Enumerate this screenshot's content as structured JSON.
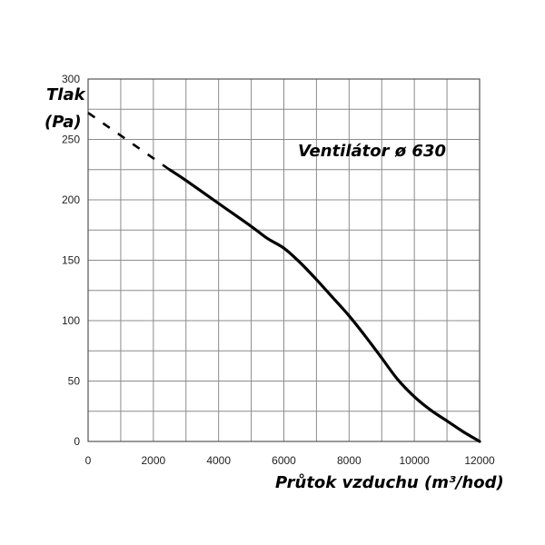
{
  "chart_data": {
    "type": "line",
    "title": "",
    "xlabel": "Průtok vzduchu (m³/hod)",
    "ylabel_line1": "Tlak",
    "ylabel_line2": "(Pa)",
    "xlim": [
      0,
      12000
    ],
    "ylim": [
      0,
      300
    ],
    "x_major_ticks": [
      0,
      2000,
      4000,
      6000,
      8000,
      10000,
      12000
    ],
    "x_tick_labels": [
      "0",
      "2000",
      "4000",
      "6000",
      "8000",
      "10000",
      "12000"
    ],
    "y_major_ticks": [
      0,
      50,
      100,
      150,
      200,
      250,
      300
    ],
    "y_tick_labels": [
      "0",
      "50",
      "100",
      "150",
      "200",
      "250",
      "300"
    ],
    "x_grid_step": 1000,
    "y_grid_step": 25,
    "grid": true,
    "annotations": [
      {
        "text": "Ventilátor ø 630",
        "x": 8700,
        "y": 236
      }
    ],
    "series": [
      {
        "style": "dashed",
        "color": "#000000",
        "x": [
          0,
          2500
        ],
        "y": [
          272,
          225
        ]
      },
      {
        "style": "solid",
        "color": "#000000",
        "x": [
          2500,
          3000,
          4000,
          5000,
          5500,
          6000,
          6500,
          7000,
          7500,
          8000,
          8500,
          9000,
          9500,
          10000,
          10500,
          11000,
          11500,
          12000
        ],
        "y": [
          225,
          216,
          197,
          178,
          168,
          160,
          148,
          134,
          119,
          104,
          87,
          69,
          51,
          37,
          26,
          17,
          8,
          0
        ]
      }
    ]
  }
}
